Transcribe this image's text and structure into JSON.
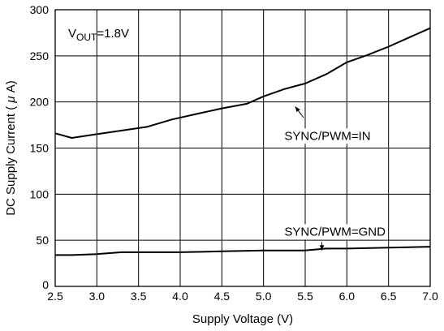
{
  "chart_data": {
    "type": "line",
    "title": "",
    "xlabel": "Supply Voltage (V)",
    "ylabel_prefix": "DC Supply Current ( ",
    "ylabel_mu": "μ",
    "ylabel_suffix": " A)",
    "xlim": [
      2.5,
      7.0
    ],
    "ylim": [
      0,
      300
    ],
    "x_ticks": [
      2.5,
      3.0,
      3.5,
      4.0,
      4.5,
      5.0,
      5.5,
      6.0,
      6.5,
      7.0
    ],
    "x_tick_labels": [
      "2.5",
      "3.0",
      "3.5",
      "4.0",
      "4.5",
      "5.0",
      "5.5",
      "6.0",
      "6.5",
      "7.0"
    ],
    "y_ticks": [
      0,
      50,
      100,
      150,
      200,
      250,
      300
    ],
    "y_tick_labels": [
      "0",
      "50",
      "100",
      "150",
      "200",
      "250",
      "300"
    ],
    "x_grid": [
      2.5,
      3.0,
      3.5,
      4.0,
      4.5,
      5.0,
      5.5,
      6.0,
      6.5,
      7.0
    ],
    "y_grid": [
      0,
      50,
      100,
      150,
      200,
      250,
      300
    ],
    "grid": true,
    "annotation_vout_main": "V",
    "annotation_vout_sub": "OUT",
    "annotation_vout_value": "=1.8V",
    "series": [
      {
        "label_text": "SYNC/PWM=IN",
        "x": [
          2.5,
          2.7,
          3.0,
          3.3,
          3.6,
          3.9,
          4.2,
          4.5,
          4.8,
          5.0,
          5.25,
          5.5,
          5.75,
          6.0,
          6.25,
          6.5,
          6.75,
          7.0
        ],
        "y": [
          166,
          161,
          165,
          169,
          173,
          181,
          187,
          193,
          198,
          206,
          214,
          220,
          230,
          243,
          251,
          260,
          270,
          280
        ]
      },
      {
        "label_text": "SYNC/PWM=GND",
        "x": [
          2.5,
          2.7,
          3.0,
          3.3,
          3.6,
          4.0,
          4.5,
          5.0,
          5.5,
          5.75,
          6.0,
          6.5,
          7.0
        ],
        "y": [
          34,
          34,
          35,
          37,
          37,
          37,
          38,
          39,
          39,
          41,
          41,
          42,
          43
        ]
      }
    ],
    "callouts": [
      {
        "series": 0,
        "text_x": 5.25,
        "text_y": 159,
        "arrow_from": [
          5.48,
          183
        ],
        "arrow_to": [
          5.38,
          195
        ]
      },
      {
        "series": 1,
        "text_x": 5.25,
        "text_y": 55,
        "arrow_from": [
          5.7,
          48
        ],
        "arrow_to": [
          5.7,
          39
        ]
      }
    ]
  }
}
